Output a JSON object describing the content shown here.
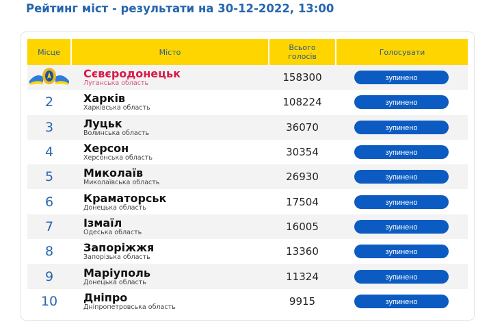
{
  "title": "Рейтинг міст - результати на 30-12-2022, 13:00",
  "headers": {
    "place": "Місце",
    "city": "Місто",
    "votes_line1": "Всього",
    "votes_line2": "голосів",
    "vote": "Голосувати"
  },
  "rows": [
    {
      "place": "1",
      "city": "Сєвєродонецьк",
      "region": "Луганська область",
      "votes": "158300",
      "button": "зупинено"
    },
    {
      "place": "2",
      "city": "Харків",
      "region": "Харківська область",
      "votes": "108224",
      "button": "зупинено"
    },
    {
      "place": "3",
      "city": "Луцьк",
      "region": "Волинська область",
      "votes": "36070",
      "button": "зупинено"
    },
    {
      "place": "4",
      "city": "Херсон",
      "region": "Херсонська область",
      "votes": "30354",
      "button": "зупинено"
    },
    {
      "place": "5",
      "city": "Миколаїв",
      "region": "Миколаївська область",
      "votes": "26930",
      "button": "зупинено"
    },
    {
      "place": "6",
      "city": "Краматорськ",
      "region": "Донецька область",
      "votes": "17504",
      "button": "зупинено"
    },
    {
      "place": "7",
      "city": "Ізмаїл",
      "region": "Одеська область",
      "votes": "16005",
      "button": "зупинено"
    },
    {
      "place": "8",
      "city": "Запоріжжя",
      "region": "Запорізька область",
      "votes": "13360",
      "button": "зупинено"
    },
    {
      "place": "9",
      "city": "Маріуполь",
      "region": "Донецька область",
      "votes": "11324",
      "button": "зупинено"
    },
    {
      "place": "10",
      "city": "Дніпро",
      "region": "Дніпропетровська область",
      "votes": "9915",
      "button": "зупинено"
    }
  ],
  "colors": {
    "header_bg": "#ffd500",
    "button": "#0b5bc2",
    "title": "#2565ad",
    "leader": "#d81b47"
  }
}
